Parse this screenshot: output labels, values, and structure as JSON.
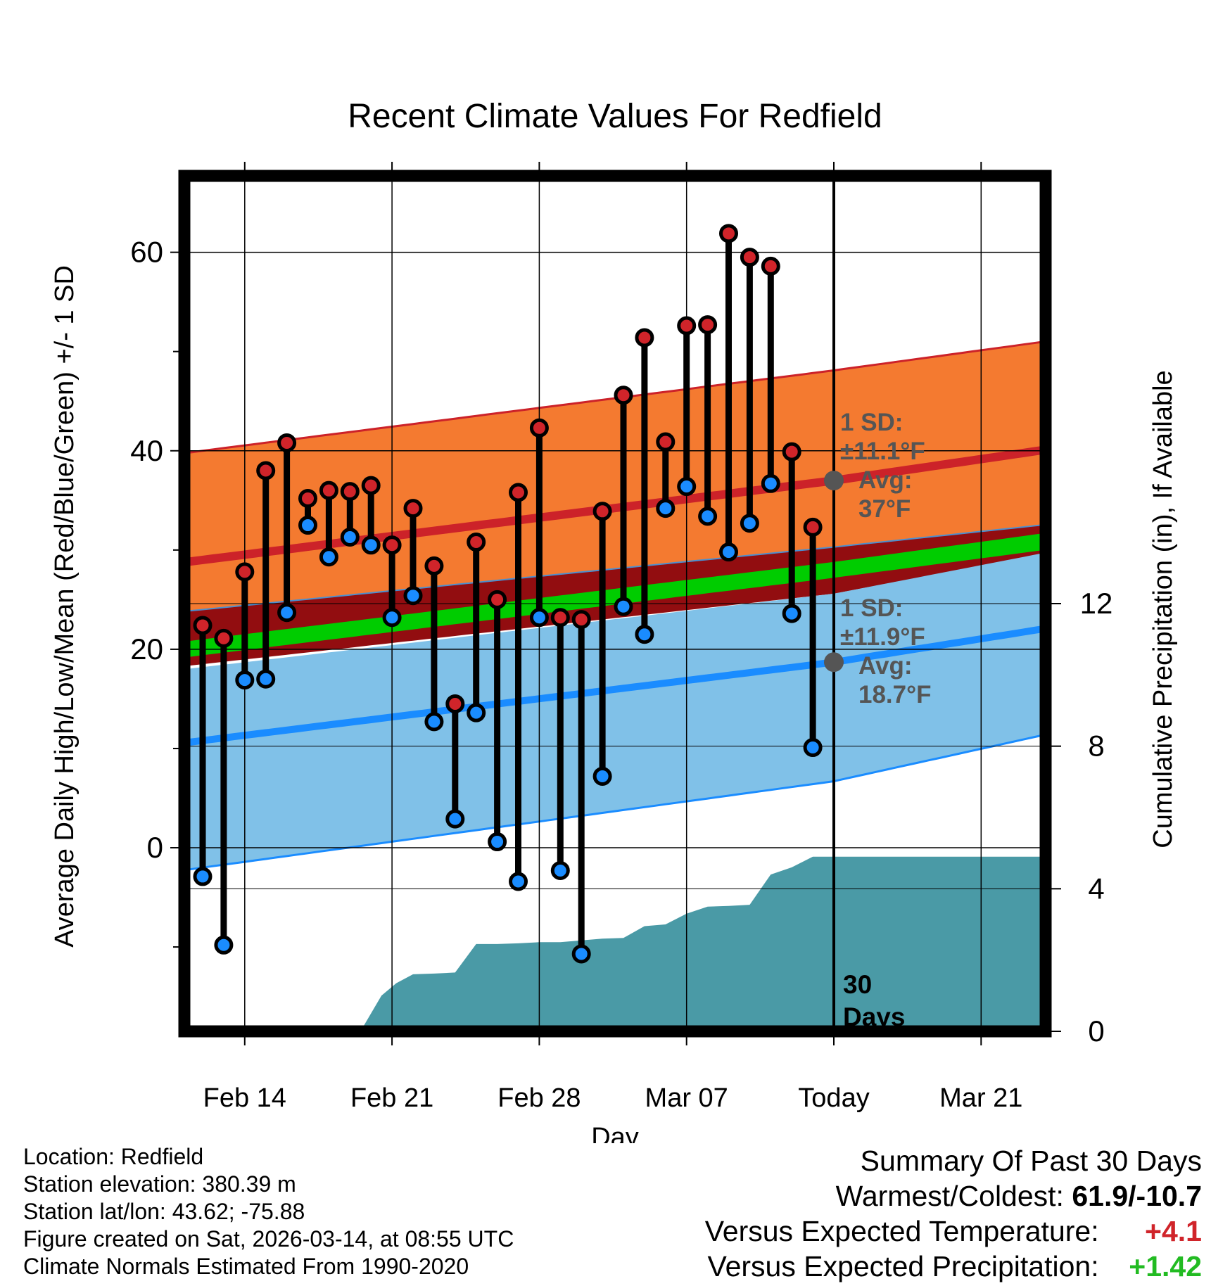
{
  "chart_data": {
    "type": "line",
    "title": "Recent Climate Values For Redfield",
    "xlabel": "Day",
    "ylabel": "Average Daily High/Low/Mean (Red/Blue/Green) +/- 1 SD",
    "y2label": "Cumulative Precipitation (in), If Available",
    "xlim": [
      0,
      40.7
    ],
    "ylim": [
      -18.5,
      67.7
    ],
    "y2lim": [
      0,
      24
    ],
    "x_ticks": [
      {
        "x": 2,
        "label": "Feb 14"
      },
      {
        "x": 9,
        "label": "Feb 21"
      },
      {
        "x": 16,
        "label": "Feb 28"
      },
      {
        "x": 23,
        "label": "Mar 07"
      },
      {
        "x": 30,
        "label": "Today"
      },
      {
        "x": 37,
        "label": "Mar 21"
      }
    ],
    "y_ticks": [
      0,
      20,
      40,
      60
    ],
    "y_minor_ticks": [
      -10,
      10,
      30,
      50
    ],
    "y2_ticks": [
      0,
      4,
      8,
      12
    ],
    "today_x": 30,
    "today_label": [
      "30",
      "Days"
    ],
    "normals": {
      "x": [
        0,
        30,
        40.7
      ],
      "high_upper": [
        40.0,
        48.1,
        51.2
      ],
      "high_mean": [
        29.0,
        37.0,
        40.3
      ],
      "high_lower": [
        24.0,
        30.3,
        32.7
      ],
      "mean_upper": [
        21.0,
        28.8,
        31.9
      ],
      "mean_lower": [
        19.4,
        27.2,
        30.2
      ],
      "mean_line_lower": [
        18.5,
        25.6,
        29.9
      ],
      "low_upper": [
        18.2,
        25.6,
        30.0
      ],
      "low_mean": [
        10.8,
        18.7,
        22.3
      ],
      "low_lower": [
        -2.0,
        6.7,
        11.7
      ]
    },
    "high_sd_note": {
      "line1": "1 SD:",
      "line2": "±11.1°F",
      "line3": "Avg:",
      "line4": "37°F",
      "avg": 37.0
    },
    "low_sd_note": {
      "line1": "1 SD:",
      "line2": "±11.9°F",
      "line3": "Avg:",
      "line4": "18.7°F",
      "avg": 18.7
    },
    "daily": [
      {
        "x": 0,
        "high": 22.4,
        "low": -2.9
      },
      {
        "x": 1,
        "high": 21.1,
        "low": -9.8
      },
      {
        "x": 2,
        "high": 27.8,
        "low": 16.9
      },
      {
        "x": 3,
        "high": 38.0,
        "low": 17.0
      },
      {
        "x": 4,
        "high": 40.8,
        "low": 23.7
      },
      {
        "x": 5,
        "high": 35.2,
        "low": 32.5
      },
      {
        "x": 6,
        "high": 36.0,
        "low": 29.3
      },
      {
        "x": 7,
        "high": 35.9,
        "low": 31.3
      },
      {
        "x": 8,
        "high": 36.5,
        "low": 30.5
      },
      {
        "x": 9,
        "high": 30.5,
        "low": 23.2
      },
      {
        "x": 10,
        "high": 34.2,
        "low": 25.4
      },
      {
        "x": 11,
        "high": 28.4,
        "low": 12.7
      },
      {
        "x": 12,
        "high": 14.5,
        "low": 2.9
      },
      {
        "x": 13,
        "high": 30.8,
        "low": 13.6
      },
      {
        "x": 14,
        "high": 25.0,
        "low": 0.6
      },
      {
        "x": 15,
        "high": 35.8,
        "low": -3.4
      },
      {
        "x": 16,
        "high": 42.3,
        "low": 23.2
      },
      {
        "x": 17,
        "high": 23.2,
        "low": -2.3
      },
      {
        "x": 18,
        "high": 23.0,
        "low": -10.7
      },
      {
        "x": 19,
        "high": 33.9,
        "low": 7.2
      },
      {
        "x": 20,
        "high": 45.6,
        "low": 24.3
      },
      {
        "x": 21,
        "high": 51.4,
        "low": 21.5
      },
      {
        "x": 22,
        "high": 40.9,
        "low": 34.2
      },
      {
        "x": 23,
        "high": 52.6,
        "low": 36.4
      },
      {
        "x": 24,
        "high": 52.7,
        "low": 33.4
      },
      {
        "x": 25,
        "high": 61.9,
        "low": 29.8
      },
      {
        "x": 26,
        "high": 59.5,
        "low": 32.7
      },
      {
        "x": 27,
        "high": 58.6,
        "low": 36.7
      },
      {
        "x": 28,
        "high": 39.9,
        "low": 23.6
      },
      {
        "x": 29,
        "high": 32.3,
        "low": 10.1
      }
    ],
    "precip_cumulative": [
      {
        "x": 7.5,
        "p": 0
      },
      {
        "x": 8.5,
        "p": 1.0
      },
      {
        "x": 9.2,
        "p": 1.35
      },
      {
        "x": 10,
        "p": 1.6
      },
      {
        "x": 11,
        "p": 1.62
      },
      {
        "x": 12,
        "p": 1.65
      },
      {
        "x": 13,
        "p": 2.45
      },
      {
        "x": 14,
        "p": 2.45
      },
      {
        "x": 15,
        "p": 2.47
      },
      {
        "x": 16,
        "p": 2.5
      },
      {
        "x": 17,
        "p": 2.5
      },
      {
        "x": 18,
        "p": 2.55
      },
      {
        "x": 19,
        "p": 2.6
      },
      {
        "x": 20,
        "p": 2.62
      },
      {
        "x": 21,
        "p": 2.95
      },
      {
        "x": 22,
        "p": 3.0
      },
      {
        "x": 23,
        "p": 3.3
      },
      {
        "x": 24,
        "p": 3.5
      },
      {
        "x": 25,
        "p": 3.52
      },
      {
        "x": 26,
        "p": 3.55
      },
      {
        "x": 27,
        "p": 4.4
      },
      {
        "x": 28,
        "p": 4.6
      },
      {
        "x": 29,
        "p": 4.9
      },
      {
        "x": 30,
        "p": 4.9
      },
      {
        "x": 40.7,
        "p": 4.9
      }
    ]
  },
  "colors": {
    "high_band": "#f47a30",
    "high_line": "#cc2229",
    "mean_band": "#920d10",
    "mean_line": "#00cc00",
    "low_band": "#80c1e8",
    "low_line": "#1a8cff",
    "precip": "#4a9aa6",
    "high_dot": "#d0242a",
    "low_dot": "#1a8cff",
    "note_text": "#555555",
    "positive_temp": "#d0242a",
    "positive_precip": "#22bb22"
  },
  "meta": {
    "location": "Location: Redfield",
    "elevation": "Station elevation: 380.39 m",
    "latlon": "Station lat/lon: 43.62; -75.88",
    "created": "Figure created on Sat, 2026-03-14, at 08:55 UTC",
    "normals": "Climate Normals Estimated From 1990-2020"
  },
  "summary": {
    "title": "Summary Of Past 30 Days",
    "warm_cold_label": "Warmest/Coldest:",
    "warm_cold_value": "61.9/-10.7",
    "temp_label": "Versus Expected Temperature:",
    "temp_value": "+4.1",
    "precip_label": "Versus Expected Precipitation:",
    "precip_value": "+1.42"
  }
}
